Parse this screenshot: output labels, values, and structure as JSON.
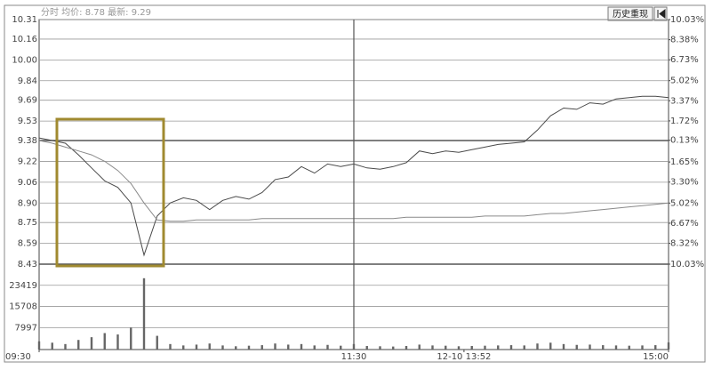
{
  "chart_data": [
    {
      "type": "line",
      "title": "分时 均价: 8.78 最新: 9.29",
      "history_button": "历史重现",
      "x": [
        0,
        5,
        10,
        15,
        20,
        25,
        30,
        35,
        40,
        45,
        50,
        55,
        60,
        65,
        70,
        75,
        80,
        85,
        90,
        95,
        100,
        105,
        110,
        115,
        120,
        125,
        130,
        135,
        140,
        145,
        150,
        155,
        160,
        165,
        170,
        175,
        180,
        185,
        190,
        195,
        200,
        205,
        210,
        215,
        220,
        225,
        230,
        235,
        240
      ],
      "xlim": [
        0,
        240
      ],
      "ylim": [
        8.43,
        10.31
      ],
      "yticks": [
        10.31,
        10.16,
        {
          "value": 10,
          "label": "10.00"
        },
        9.84,
        9.69,
        9.53,
        9.38,
        9.22,
        9.06,
        {
          "value": 8.9,
          "label": "8.90"
        },
        8.75,
        8.59,
        8.43
      ],
      "y2lim": [
        -10.03,
        10.03
      ],
      "y2ticks": [
        {
          "value": 10.03,
          "label": "10.03%"
        },
        {
          "value": 8.38,
          "label": "8.38%"
        },
        {
          "value": 6.73,
          "label": "6.73%"
        },
        {
          "value": 5.02,
          "label": "5.02%"
        },
        {
          "value": 3.37,
          "label": "3.37%"
        },
        {
          "value": 1.72,
          "label": "1.72%"
        },
        {
          "value": 0.13,
          "label": "0.13%"
        },
        {
          "value": -1.65,
          "label": "1.65%"
        },
        {
          "value": -3.3,
          "label": "3.30%"
        },
        {
          "value": -5.02,
          "label": "5.02%"
        },
        {
          "value": -6.67,
          "label": "6.67%"
        },
        {
          "value": -8.32,
          "label": "8.32%"
        },
        {
          "value": -10.03,
          "label": "10.03%"
        }
      ],
      "grid": true,
      "series": [
        {
          "color": "#4a4a4a",
          "values": [
            9.4,
            9.38,
            9.36,
            9.27,
            9.17,
            9.07,
            9.02,
            8.9,
            8.5,
            8.8,
            8.9,
            8.94,
            8.92,
            8.85,
            8.92,
            8.95,
            8.93,
            8.98,
            9.08,
            9.1,
            9.18,
            9.13,
            9.2,
            9.18,
            9.2,
            9.17,
            9.16,
            9.18,
            9.21,
            9.3,
            9.28,
            9.3,
            9.29,
            9.31,
            9.33,
            9.35,
            9.36,
            9.37,
            9.46,
            9.57,
            9.63,
            9.62,
            9.67,
            9.66,
            9.7,
            9.71,
            9.72,
            9.72,
            9.71
          ]
        },
        {
          "color": "#8a8a8a",
          "values": [
            9.38,
            9.36,
            9.33,
            9.3,
            9.27,
            9.22,
            9.15,
            9.05,
            8.9,
            8.77,
            8.76,
            8.76,
            8.77,
            8.77,
            8.77,
            8.77,
            8.77,
            8.78,
            8.78,
            8.78,
            8.78,
            8.78,
            8.78,
            8.78,
            8.78,
            8.78,
            8.78,
            8.78,
            8.79,
            8.79,
            8.79,
            8.79,
            8.79,
            8.79,
            8.8,
            8.8,
            8.8,
            8.8,
            8.81,
            8.82,
            8.82,
            8.83,
            8.84,
            8.85,
            8.86,
            8.87,
            8.88,
            8.89,
            8.9
          ]
        }
      ]
    },
    {
      "type": "bar",
      "color": "#666666",
      "x": [
        0,
        5,
        10,
        15,
        20,
        25,
        30,
        35,
        40,
        45,
        50,
        55,
        60,
        65,
        70,
        75,
        80,
        85,
        90,
        95,
        100,
        105,
        110,
        115,
        120,
        125,
        130,
        135,
        140,
        145,
        150,
        155,
        160,
        165,
        170,
        175,
        180,
        185,
        190,
        195,
        200,
        205,
        210,
        215,
        220,
        225,
        230,
        235,
        240
      ],
      "xlim": [
        0,
        240
      ],
      "xticks": [
        {
          "value": 0,
          "label": "09:30"
        },
        {
          "value": 120,
          "label": "11:30"
        },
        {
          "value": 162,
          "label": "12-10 13:52"
        },
        {
          "value": 240,
          "label": "15:00"
        }
      ],
      "ylim": [
        0,
        31130
      ],
      "yticks": [
        23419,
        15708,
        7997
      ],
      "values": [
        3000,
        2500,
        2000,
        3500,
        4500,
        6000,
        5500,
        8000,
        26000,
        5000,
        2000,
        1500,
        1800,
        2200,
        1500,
        1200,
        1400,
        1600,
        2200,
        1800,
        2000,
        1500,
        1700,
        1400,
        2000,
        1300,
        1200,
        1100,
        1300,
        1800,
        1500,
        1400,
        1200,
        1300,
        1400,
        1500,
        1600,
        1500,
        2200,
        2500,
        2000,
        1700,
        1800,
        1600,
        1500,
        1400,
        1500,
        1600,
        2600
      ]
    }
  ]
}
